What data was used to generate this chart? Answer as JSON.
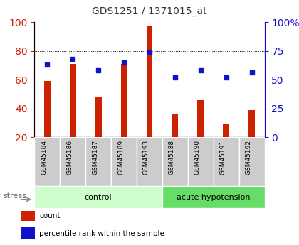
{
  "title": "GDS1251 / 1371015_at",
  "samples": [
    "GSM45184",
    "GSM45186",
    "GSM45187",
    "GSM45189",
    "GSM45193",
    "GSM45188",
    "GSM45190",
    "GSM45191",
    "GSM45192"
  ],
  "counts": [
    59,
    71,
    48,
    71,
    97,
    36,
    46,
    29,
    39
  ],
  "percentiles": [
    63,
    68,
    58,
    65,
    74,
    52,
    58,
    52,
    56
  ],
  "bar_color": "#cc2200",
  "dot_color": "#1111cc",
  "left_ylim": [
    20,
    100
  ],
  "right_ylim": [
    0,
    100
  ],
  "left_yticks": [
    20,
    40,
    60,
    80,
    100
  ],
  "right_yticks": [
    0,
    25,
    50,
    75,
    100
  ],
  "right_yticklabels": [
    "0",
    "25",
    "50",
    "75",
    "100%"
  ],
  "groups": [
    {
      "label": "control",
      "start": 0,
      "end": 5,
      "color": "#ccffcc"
    },
    {
      "label": "acute hypotension",
      "start": 5,
      "end": 9,
      "color": "#66dd66"
    }
  ],
  "stress_label": "stress",
  "tick_label_bg": "#cccccc",
  "bar_width": 0.25,
  "legend_items": [
    {
      "label": "count",
      "color": "#cc2200"
    },
    {
      "label": "percentile rank within the sample",
      "color": "#1111cc"
    }
  ]
}
